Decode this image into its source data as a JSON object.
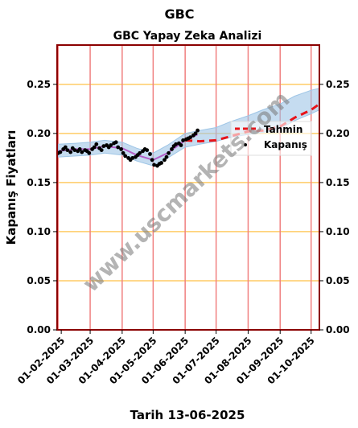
{
  "suptitle": "GBC",
  "watermark": "www.uscmarkets.com",
  "colors": {
    "frame": "#8b0000",
    "vline": "#f08080",
    "hgrid": "#ffcc66",
    "close": "#000000",
    "forecast": "#e8141a",
    "band": "#9ec5e6",
    "smooth": "#b048c0"
  },
  "chart_data": {
    "type": "line",
    "title": "GBC Yapay Zeka Analizi",
    "xlabel": "Tarih 13-06-2025",
    "ylabel": "Kapanış Fiyatları",
    "ylim": [
      0,
      0.29
    ],
    "xlim": [
      "2025-01-28",
      "2025-10-09"
    ],
    "yticks": [
      0.0,
      0.05,
      0.1,
      0.15,
      0.2,
      0.25
    ],
    "ytick_labels": [
      "0.00",
      "0.05",
      "0.10",
      "0.15",
      "0.20",
      "0.25"
    ],
    "xticks": [
      "2025-02-01",
      "2025-03-01",
      "2025-04-01",
      "2025-05-01",
      "2025-06-01",
      "2025-07-01",
      "2025-08-01",
      "2025-09-01",
      "2025-10-01"
    ],
    "xtick_labels": [
      "01-02-2025",
      "01-03-2025",
      "01-04-2025",
      "01-05-2025",
      "01-06-2025",
      "01-07-2025",
      "01-08-2025",
      "01-09-2025",
      "01-10-2025"
    ],
    "vlines": [
      "2025-01-29",
      "2025-03-01",
      "2025-04-01",
      "2025-05-01",
      "2025-06-01",
      "2025-07-01",
      "2025-08-01",
      "2025-09-01",
      "2025-10-01"
    ],
    "grid": "horizontal",
    "legend_position": "center-right",
    "series": [
      {
        "name": "Kapanış",
        "kind": "scatter",
        "x": [
          "2025-01-29",
          "2025-01-31",
          "2025-02-03",
          "2025-02-05",
          "2025-02-07",
          "2025-02-10",
          "2025-02-12",
          "2025-02-14",
          "2025-02-17",
          "2025-02-19",
          "2025-02-21",
          "2025-02-24",
          "2025-02-26",
          "2025-02-28",
          "2025-03-03",
          "2025-03-05",
          "2025-03-07",
          "2025-03-10",
          "2025-03-12",
          "2025-03-14",
          "2025-03-17",
          "2025-03-19",
          "2025-03-21",
          "2025-03-24",
          "2025-03-26",
          "2025-03-28",
          "2025-03-31",
          "2025-04-02",
          "2025-04-04",
          "2025-04-07",
          "2025-04-09",
          "2025-04-11",
          "2025-04-14",
          "2025-04-16",
          "2025-04-18",
          "2025-04-21",
          "2025-04-23",
          "2025-04-25",
          "2025-04-28",
          "2025-04-30",
          "2025-05-02",
          "2025-05-05",
          "2025-05-07",
          "2025-05-09",
          "2025-05-12",
          "2025-05-14",
          "2025-05-16",
          "2025-05-19",
          "2025-05-21",
          "2025-05-23",
          "2025-05-26",
          "2025-05-28",
          "2025-05-30",
          "2025-06-02",
          "2025-06-04",
          "2025-06-06",
          "2025-06-09",
          "2025-06-11",
          "2025-06-13"
        ],
        "y": [
          0.18,
          0.181,
          0.184,
          0.186,
          0.183,
          0.181,
          0.185,
          0.183,
          0.182,
          0.184,
          0.181,
          0.183,
          0.182,
          0.18,
          0.184,
          0.186,
          0.189,
          0.185,
          0.183,
          0.187,
          0.188,
          0.186,
          0.188,
          0.19,
          0.191,
          0.186,
          0.184,
          0.18,
          0.177,
          0.175,
          0.173,
          0.175,
          0.176,
          0.178,
          0.18,
          0.182,
          0.184,
          0.183,
          0.179,
          0.173,
          0.168,
          0.167,
          0.169,
          0.17,
          0.173,
          0.176,
          0.18,
          0.184,
          0.187,
          0.189,
          0.19,
          0.188,
          0.193,
          0.194,
          0.195,
          0.196,
          0.198,
          0.2,
          0.203
        ]
      },
      {
        "name": "Tahmin",
        "kind": "dashed-line",
        "x": [
          "2025-06-01",
          "2025-06-15",
          "2025-07-01",
          "2025-07-15",
          "2025-08-01",
          "2025-08-15",
          "2025-09-01",
          "2025-09-15",
          "2025-10-01",
          "2025-10-09"
        ],
        "y": [
          0.193,
          0.192,
          0.193,
          0.197,
          0.202,
          0.203,
          0.207,
          0.216,
          0.224,
          0.23
        ]
      },
      {
        "name": "",
        "kind": "band",
        "x": [
          "2025-01-29",
          "2025-02-15",
          "2025-03-01",
          "2025-03-15",
          "2025-04-01",
          "2025-04-15",
          "2025-05-01",
          "2025-05-15",
          "2025-06-01",
          "2025-06-15",
          "2025-07-01",
          "2025-07-15",
          "2025-08-01",
          "2025-08-15",
          "2025-09-01",
          "2025-09-15",
          "2025-10-01",
          "2025-10-09"
        ],
        "lower": [
          0.176,
          0.177,
          0.178,
          0.18,
          0.178,
          0.172,
          0.167,
          0.175,
          0.186,
          0.189,
          0.192,
          0.196,
          0.199,
          0.201,
          0.205,
          0.213,
          0.22,
          0.224
        ],
        "upper": [
          0.189,
          0.19,
          0.191,
          0.193,
          0.191,
          0.185,
          0.18,
          0.188,
          0.2,
          0.203,
          0.206,
          0.212,
          0.218,
          0.224,
          0.23,
          0.238,
          0.244,
          0.246
        ]
      },
      {
        "name": "",
        "kind": "line",
        "x": [
          "2025-01-29",
          "2025-02-15",
          "2025-03-01",
          "2025-03-15",
          "2025-04-01",
          "2025-04-15",
          "2025-05-01",
          "2025-05-15",
          "2025-06-01",
          "2025-06-13"
        ],
        "y": [
          0.182,
          0.184,
          0.184,
          0.187,
          0.185,
          0.178,
          0.173,
          0.18,
          0.193,
          0.199
        ]
      }
    ]
  }
}
